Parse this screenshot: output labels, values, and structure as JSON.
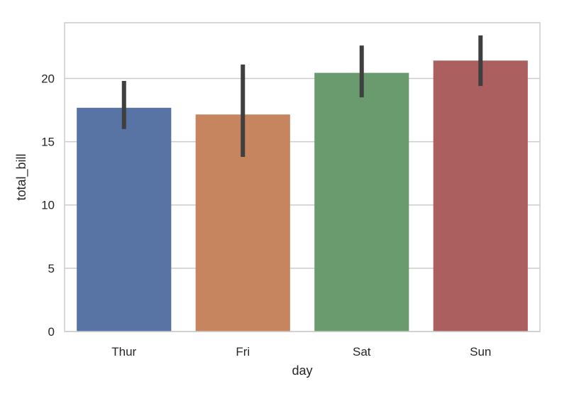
{
  "chart_data": {
    "type": "bar",
    "title": "",
    "xlabel": "day",
    "ylabel": "total_bill",
    "categories": [
      "Thur",
      "Fri",
      "Sat",
      "Sun"
    ],
    "values": [
      17.68,
      17.15,
      20.44,
      21.41
    ],
    "error_bars": [
      {
        "low": 16.0,
        "high": 19.8
      },
      {
        "low": 13.8,
        "high": 21.1
      },
      {
        "low": 18.5,
        "high": 22.6
      },
      {
        "low": 19.4,
        "high": 23.4
      }
    ],
    "colors": [
      "#5874a5",
      "#c6855f",
      "#699b6f",
      "#ab5f5f"
    ],
    "error_bar_color": "#3f3f3f",
    "ylim": [
      0,
      24.4
    ],
    "yticks": [
      "0",
      "5",
      "10",
      "15",
      "20"
    ],
    "ytick_values": [
      0,
      5,
      10,
      15,
      20
    ],
    "grid": true,
    "style": "whitegrid"
  }
}
